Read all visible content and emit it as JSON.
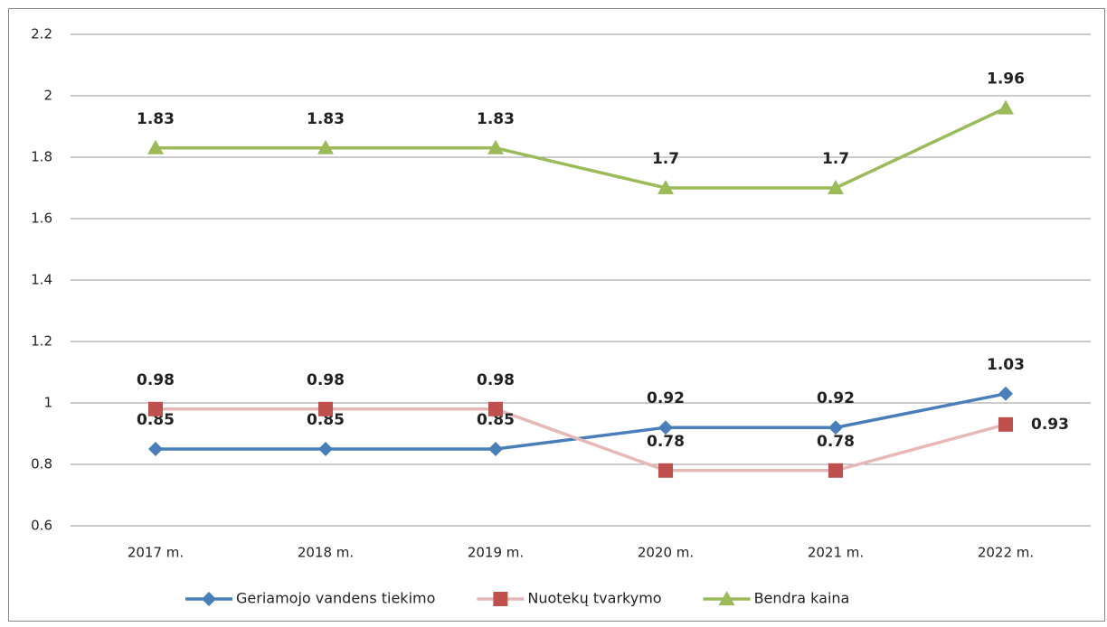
{
  "chart_data": {
    "type": "line",
    "categories": [
      "2017 m.",
      "2018 m.",
      "2019 m.",
      "2020 m.",
      "2021 m.",
      "2022 m."
    ],
    "series": [
      {
        "name": "Geriamojo vandens tiekimo",
        "color": "#4a7ebb",
        "marker": "diamond",
        "values": [
          0.85,
          0.85,
          0.85,
          0.92,
          0.92,
          1.03
        ]
      },
      {
        "name": "Nuotekų tvarkymo",
        "color": "#c0504d",
        "line_color": "#e6b9b8",
        "marker": "square",
        "values": [
          0.98,
          0.98,
          0.98,
          0.78,
          0.78,
          0.93
        ]
      },
      {
        "name": "Bendra kaina",
        "color": "#9bbb59",
        "marker": "triangle",
        "values": [
          1.83,
          1.83,
          1.83,
          1.7,
          1.7,
          1.96
        ]
      }
    ],
    "ylim": [
      0.6,
      2.2
    ],
    "yticks": [
      0.6,
      0.8,
      1,
      1.2,
      1.4,
      1.6,
      1.8,
      2,
      2.2
    ],
    "grid": true,
    "legend": "bottom"
  }
}
